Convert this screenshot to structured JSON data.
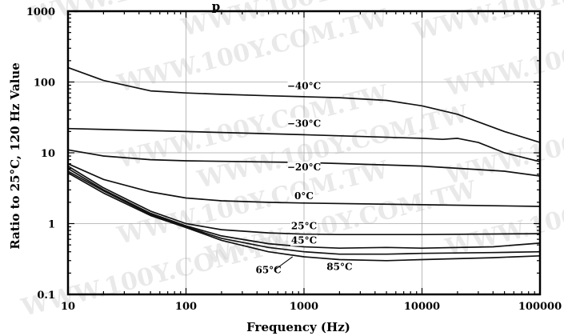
{
  "chart_data": {
    "type": "line",
    "title": "p",
    "xlabel": "Frequency (Hz)",
    "ylabel": "Ratio to 25°C, 120 Hz Value",
    "x_scale": "log",
    "y_scale": "log",
    "xlim": [
      10,
      100000
    ],
    "ylim": [
      0.1,
      1000
    ],
    "x_ticks": [
      "10",
      "100",
      "1000",
      "10000",
      "100000"
    ],
    "y_ticks": [
      "0.1",
      "1",
      "10",
      "100",
      "1000"
    ],
    "grid": true,
    "watermark": "WWW.100Y.COM.TW",
    "series": [
      {
        "name": "−40°C",
        "x": [
          10,
          20,
          50,
          100,
          200,
          500,
          1000,
          2000,
          5000,
          10000,
          20000,
          50000,
          100000
        ],
        "y": [
          160,
          105,
          75,
          70,
          67,
          64,
          62,
          60,
          55,
          46,
          35,
          20,
          14
        ]
      },
      {
        "name": "−30°C",
        "x": [
          10,
          100,
          1000,
          10000,
          15000,
          20000,
          30000,
          50000,
          100000
        ],
        "y": [
          22,
          20,
          18,
          16,
          15.5,
          16,
          14,
          10,
          7.5
        ]
      },
      {
        "name": "−20°C",
        "x": [
          10,
          20,
          50,
          100,
          1000,
          10000,
          50000,
          100000
        ],
        "y": [
          11,
          9,
          8,
          7.7,
          7.3,
          6.5,
          5.5,
          4.7
        ]
      },
      {
        "name": "0°C",
        "x": [
          10,
          20,
          50,
          100,
          200,
          500,
          1000,
          10000,
          100000
        ],
        "y": [
          7,
          4.2,
          2.8,
          2.3,
          2.1,
          2,
          1.95,
          1.85,
          1.75
        ]
      },
      {
        "name": "25°C",
        "x": [
          10,
          20,
          50,
          100,
          200,
          500,
          1000,
          2000,
          10000,
          100000
        ],
        "y": [
          6.5,
          3.2,
          1.5,
          1.0,
          0.82,
          0.74,
          0.71,
          0.7,
          0.7,
          0.72
        ]
      },
      {
        "name": "45°C",
        "x": [
          10,
          20,
          50,
          100,
          200,
          500,
          1000,
          2000,
          5000,
          10000,
          40000,
          100000
        ],
        "y": [
          6,
          3,
          1.4,
          0.93,
          0.67,
          0.52,
          0.47,
          0.45,
          0.46,
          0.45,
          0.47,
          0.53
        ]
      },
      {
        "name": "65°C",
        "x": [
          10,
          20,
          50,
          100,
          200,
          500,
          1000,
          2000,
          5000,
          10000,
          40000,
          100000
        ],
        "y": [
          5.5,
          2.9,
          1.35,
          0.9,
          0.62,
          0.46,
          0.4,
          0.37,
          0.37,
          0.38,
          0.39,
          0.4
        ]
      },
      {
        "name": "85°C",
        "x": [
          10,
          20,
          50,
          100,
          200,
          500,
          1000,
          2000,
          5000,
          10000,
          40000,
          100000
        ],
        "y": [
          5.2,
          2.7,
          1.3,
          0.88,
          0.58,
          0.4,
          0.34,
          0.31,
          0.3,
          0.31,
          0.33,
          0.35
        ]
      }
    ]
  }
}
